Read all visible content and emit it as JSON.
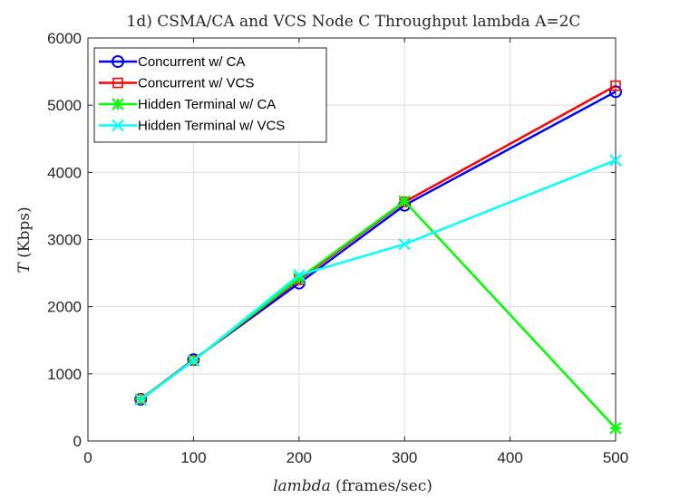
{
  "chart_data": {
    "type": "line",
    "title": "1d) CSMA/CA and VCS Node C Throughput lambda A=2C",
    "xlabel": {
      "var": "lambda",
      "unit": " (frames/sec)"
    },
    "ylabel": {
      "var": "T",
      "unit": " (Kbps)"
    },
    "xlim": [
      0,
      500
    ],
    "ylim": [
      0,
      6000
    ],
    "xticks": [
      0,
      100,
      200,
      300,
      400,
      500
    ],
    "yticks": [
      0,
      1000,
      2000,
      3000,
      4000,
      5000,
      6000
    ],
    "grid": true,
    "legend_position": "top-left",
    "x": [
      50,
      100,
      200,
      300,
      500
    ],
    "series": [
      {
        "name": "Concurrent w/ CA",
        "color": "#0000ff",
        "marker": "circle",
        "values": [
          620,
          1210,
          2350,
          3510,
          5200
        ]
      },
      {
        "name": "Concurrent w/ VCS",
        "color": "#ff0000",
        "marker": "square",
        "values": [
          625,
          1200,
          2400,
          3560,
          5290
        ]
      },
      {
        "name": "Hidden Terminal w/ CA",
        "color": "#00ff00",
        "marker": "asterisk",
        "values": [
          620,
          1200,
          2420,
          3570,
          190
        ]
      },
      {
        "name": "Hidden Terminal w/ VCS",
        "color": "#00ffff",
        "marker": "x",
        "values": [
          615,
          1195,
          2470,
          2930,
          4180
        ]
      }
    ]
  }
}
